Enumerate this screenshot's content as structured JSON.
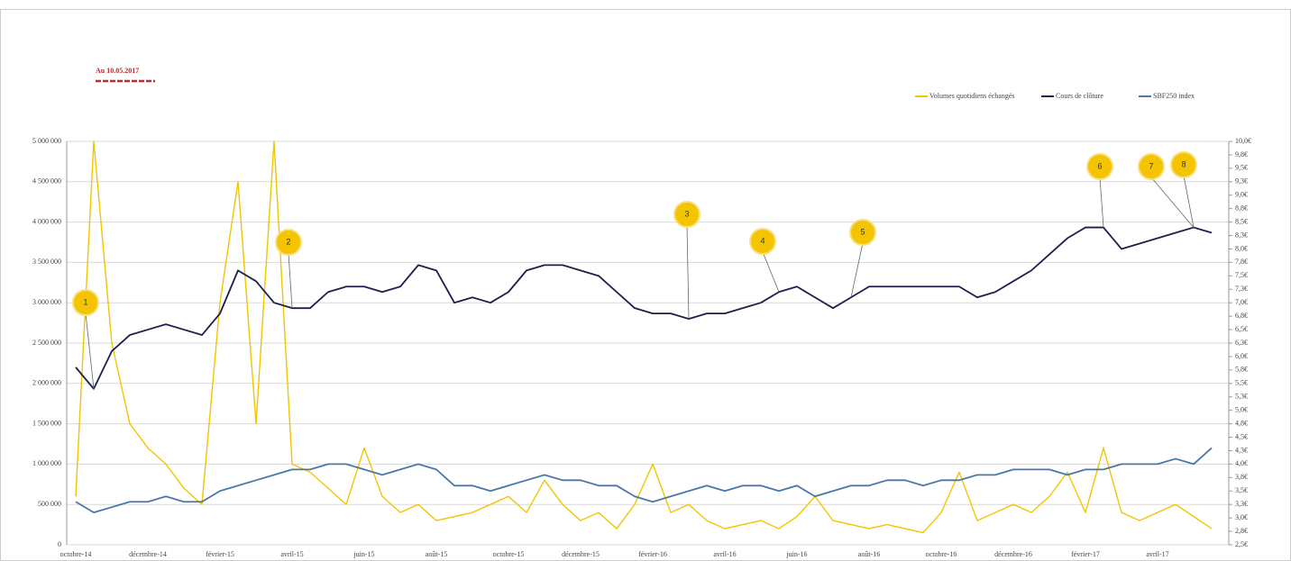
{
  "chart_data": {
    "type": "line",
    "title": "Au 10.05.2017",
    "categories": [
      "octobre-14",
      null,
      null,
      null,
      "décembre-14",
      null,
      null,
      null,
      "février-15",
      null,
      null,
      null,
      "avril-15",
      null,
      null,
      null,
      "juin-15",
      null,
      null,
      null,
      "août-15",
      null,
      null,
      null,
      "octobre-15",
      null,
      null,
      null,
      "décembre-15",
      null,
      null,
      null,
      "février-16",
      null,
      null,
      null,
      "avril-16",
      null,
      null,
      null,
      "juin-16",
      null,
      null,
      null,
      "août-16",
      null,
      null,
      null,
      "octobre-16",
      null,
      null,
      null,
      "décembre-16",
      null,
      null,
      null,
      "février-17",
      null,
      null,
      null,
      "avril-17",
      null,
      null,
      null
    ],
    "ylim": [
      0,
      5000000
    ],
    "yticks": [
      0,
      {
        "value": 500000,
        "label": "500 000"
      },
      {
        "value": 1000000,
        "label": "1 000 000"
      },
      {
        "value": 1500000,
        "label": "1 500 000"
      },
      {
        "value": 2000000,
        "label": "2 000 000"
      },
      {
        "value": 2500000,
        "label": "2 500 000"
      },
      {
        "value": 3000000,
        "label": "3 000 000"
      },
      {
        "value": 3500000,
        "label": "3 500 000"
      },
      {
        "value": 4000000,
        "label": "4 000 000"
      },
      {
        "value": 4500000,
        "label": "4 500 000"
      },
      {
        "value": 5000000,
        "label": "5 000 000"
      }
    ],
    "y2lim": [
      2.5,
      10
    ],
    "y2ticks": [
      {
        "value": 2.5,
        "label": "2,5€"
      },
      {
        "value": 2.75,
        "label": "2,8€"
      },
      {
        "value": 3,
        "label": "3,0€"
      },
      {
        "value": 3.25,
        "label": "3,3€"
      },
      {
        "value": 3.5,
        "label": "3,5€"
      },
      {
        "value": 3.75,
        "label": "3,8€"
      },
      {
        "value": 4,
        "label": "4,0€"
      },
      {
        "value": 4.25,
        "label": "4,3€"
      },
      {
        "value": 4.5,
        "label": "4,5€"
      },
      {
        "value": 4.75,
        "label": "4,8€"
      },
      {
        "value": 5,
        "label": "5,0€"
      },
      {
        "value": 5.25,
        "label": "5,3€"
      },
      {
        "value": 5.5,
        "label": "5,5€"
      },
      {
        "value": 5.75,
        "label": "5,8€"
      },
      {
        "value": 6,
        "label": "6,0€"
      },
      {
        "value": 6.25,
        "label": "6,3€"
      },
      {
        "value": 6.5,
        "label": "6,5€"
      },
      {
        "value": 6.75,
        "label": "6,8€"
      },
      {
        "value": 7,
        "label": "7,0€"
      },
      {
        "value": 7.25,
        "label": "7,3€"
      },
      {
        "value": 7.5,
        "label": "7,5€"
      },
      {
        "value": 7.75,
        "label": "7,8€"
      },
      {
        "value": 8,
        "label": "8,0€"
      },
      {
        "value": 8.25,
        "label": "8,3€"
      },
      {
        "value": 8.5,
        "label": "8,5€"
      },
      {
        "value": 8.75,
        "label": "8,8€"
      },
      {
        "value": 9,
        "label": "9,0€"
      },
      {
        "value": 9.25,
        "label": "9,3€"
      },
      {
        "value": 9.5,
        "label": "9,5€"
      },
      {
        "value": 9.75,
        "label": "9,8€"
      },
      {
        "value": 10,
        "label": "10,0€"
      }
    ],
    "grid": true,
    "legend": "top-right",
    "series": [
      {
        "name": "Volumes quotidiens échangés",
        "color": "#f2c500",
        "axis": "y",
        "values": [
          600000,
          5000000,
          2500000,
          1500000,
          1200000,
          1000000,
          700000,
          500000,
          3000000,
          4500000,
          1500000,
          5000000,
          1000000,
          900000,
          700000,
          500000,
          1200000,
          600000,
          400000,
          500000,
          300000,
          350000,
          400000,
          500000,
          600000,
          400000,
          800000,
          500000,
          300000,
          400000,
          200000,
          500000,
          1000000,
          400000,
          500000,
          300000,
          200000,
          250000,
          300000,
          200000,
          350000,
          600000,
          300000,
          250000,
          200000,
          250000,
          200000,
          150000,
          400000,
          900000,
          300000,
          400000,
          500000,
          400000,
          600000,
          900000,
          400000,
          1200000,
          400000,
          300000,
          400000,
          500000,
          350000,
          200000
        ]
      },
      {
        "name": "Cours de clôture",
        "color": "#1b1f4b",
        "axis": "y2",
        "values": [
          5.8,
          5.4,
          6.1,
          6.4,
          6.5,
          6.6,
          6.5,
          6.4,
          6.8,
          7.6,
          7.4,
          7.0,
          6.9,
          6.9,
          7.2,
          7.3,
          7.3,
          7.2,
          7.3,
          7.7,
          7.6,
          7.0,
          7.1,
          7.0,
          7.2,
          7.6,
          7.7,
          7.7,
          7.6,
          7.5,
          7.2,
          6.9,
          6.8,
          6.8,
          6.7,
          6.8,
          6.8,
          6.9,
          7.0,
          7.2,
          7.3,
          7.1,
          6.9,
          7.1,
          7.3,
          7.3,
          7.3,
          7.3,
          7.3,
          7.3,
          7.1,
          7.2,
          7.4,
          7.6,
          7.9,
          8.2,
          8.4,
          8.4,
          8.0,
          8.1,
          8.2,
          8.3,
          8.4,
          8.3
        ]
      },
      {
        "name": "SBF250 index",
        "color": "#4a77a6",
        "axis": "y2",
        "values": [
          3.3,
          3.1,
          3.2,
          3.3,
          3.3,
          3.4,
          3.3,
          3.3,
          3.5,
          3.6,
          3.7,
          3.8,
          3.9,
          3.9,
          4.0,
          4.0,
          3.9,
          3.8,
          3.9,
          4.0,
          3.9,
          3.6,
          3.6,
          3.5,
          3.6,
          3.7,
          3.8,
          3.7,
          3.7,
          3.6,
          3.6,
          3.4,
          3.3,
          3.4,
          3.5,
          3.6,
          3.5,
          3.6,
          3.6,
          3.5,
          3.6,
          3.4,
          3.5,
          3.6,
          3.6,
          3.7,
          3.7,
          3.6,
          3.7,
          3.7,
          3.8,
          3.8,
          3.9,
          3.9,
          3.9,
          3.8,
          3.9,
          3.9,
          4.0,
          4.0,
          4.0,
          4.1,
          4.0,
          4.3
        ]
      }
    ],
    "annotations": [
      "1",
      "2",
      "3",
      "4",
      "5",
      "6",
      "7",
      "8"
    ]
  }
}
